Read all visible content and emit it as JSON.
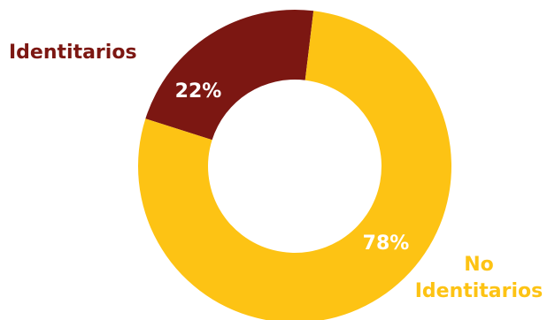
{
  "chart_data": {
    "type": "pie",
    "variant": "donut",
    "categories": [
      "Identitarios",
      "No Identitarios"
    ],
    "values": [
      22,
      78
    ],
    "value_labels": [
      "22%",
      "78%"
    ],
    "colors": [
      "#7c1712",
      "#fdc314"
    ],
    "legend": [
      {
        "label": "Identitarios",
        "color": "#7c1712"
      },
      {
        "label_line1": "No",
        "label_line2": "Identitarios",
        "color": "#fdc314"
      }
    ]
  }
}
